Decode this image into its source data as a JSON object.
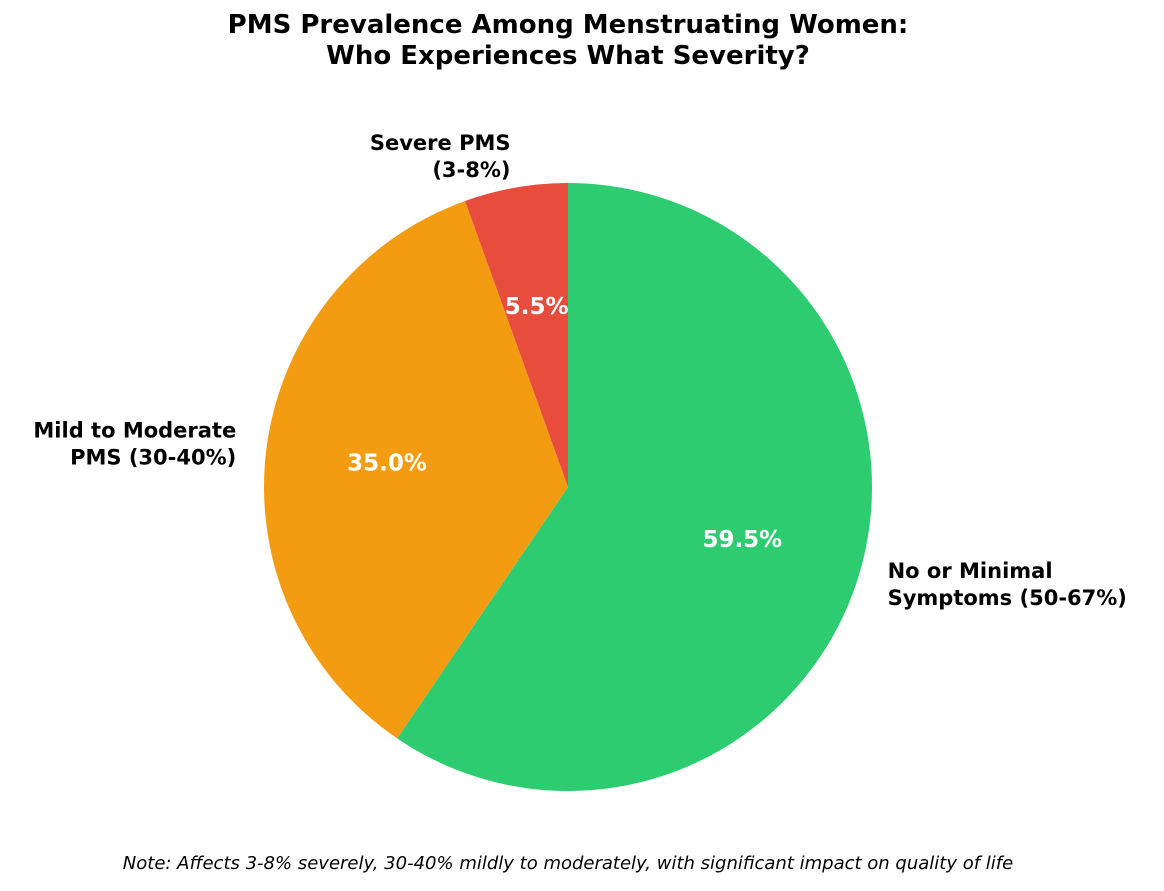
{
  "chart_data": {
    "type": "pie",
    "title": "PMS Prevalence Among Menstruating Women:\nWho Experiences What Severity?",
    "title_lines": [
      "PMS Prevalence Among Menstruating Women:",
      "Who Experiences What Severity?"
    ],
    "start_angle_deg": 90,
    "direction": "clockwise",
    "slices": [
      {
        "label": "No or Minimal Symptoms (50-67%)",
        "label_lines": [
          "No or Minimal",
          "Symptoms (50-67%)"
        ],
        "value": 59.5,
        "pct_label": "59.5%",
        "color": "#2ecc71"
      },
      {
        "label": "Mild to Moderate PMS (30-40%)",
        "label_lines": [
          "Mild to Moderate",
          "PMS (30-40%)"
        ],
        "value": 35.0,
        "pct_label": "35.0%",
        "color": "#f39c12"
      },
      {
        "label": "Severe PMS (3-8%)",
        "label_lines": [
          "Severe PMS",
          "(3-8%)"
        ],
        "value": 5.5,
        "pct_label": "5.5%",
        "color": "#e74c3c"
      }
    ],
    "note": "Note: Affects 3-8% severely, 30-40% mildly to moderately, with significant impact on quality of life"
  }
}
